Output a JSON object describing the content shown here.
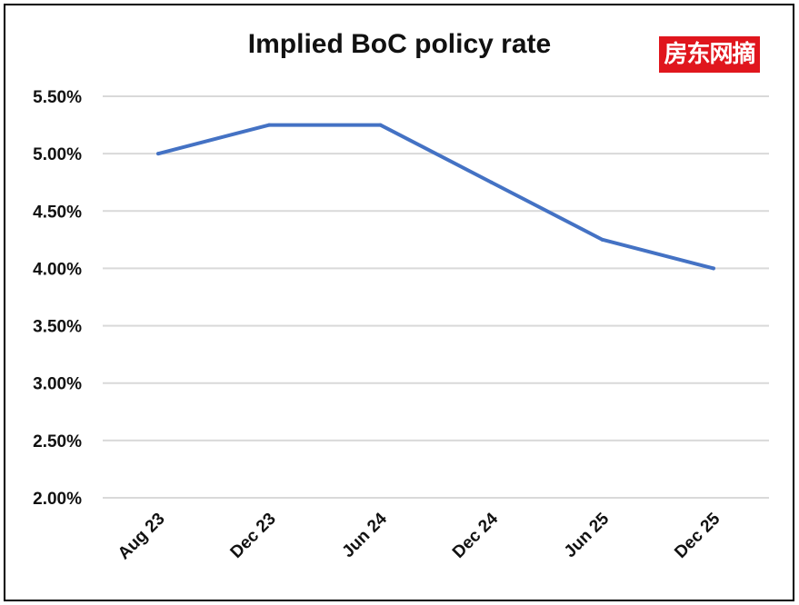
{
  "chart_data": {
    "type": "line",
    "title": "Implied BoC policy rate",
    "xlabel": "",
    "ylabel": "",
    "categories": [
      "Aug 23",
      "Dec 23",
      "Jun 24",
      "Dec 24",
      "Jun 25",
      "Dec 25"
    ],
    "series": [
      {
        "name": "Implied BoC policy rate",
        "values": [
          5.0,
          5.25,
          5.25,
          4.75,
          4.25,
          4.0
        ],
        "color": "#4472c4"
      }
    ],
    "ylim": [
      2.0,
      5.5
    ],
    "yticks": [
      "5.50%",
      "5.00%",
      "4.50%",
      "4.00%",
      "3.50%",
      "3.00%",
      "2.50%",
      "2.00%"
    ],
    "ytick_values": [
      5.5,
      5.0,
      4.5,
      4.0,
      3.5,
      3.0,
      2.5,
      2.0
    ],
    "grid": true,
    "legend": "none"
  },
  "watermark": "房东网摘"
}
